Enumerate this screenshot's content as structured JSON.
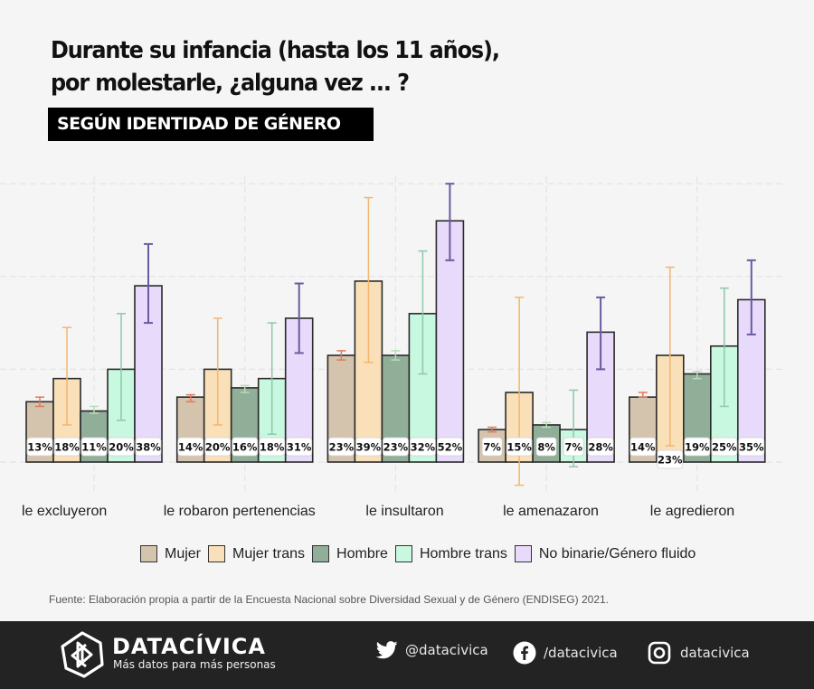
{
  "header": {
    "title_line1": "Durante su infancia (hasta los 11 años),",
    "title_line2": "por molestarle, ¿alguna vez ... ?",
    "subtitle": "SEGÚN IDENTIDAD DE GÉNERO"
  },
  "chart_data": {
    "type": "bar",
    "title": "Durante su infancia (hasta los 11 años), por molestarle, ¿alguna vez ... ?",
    "subtitle": "SEGÚN IDENTIDAD DE GÉNERO",
    "xlabel": "",
    "ylabel": "",
    "ylim": [
      0,
      60
    ],
    "y_gridlines": [
      0,
      20,
      40,
      60
    ],
    "grid": true,
    "legend_position": "bottom",
    "categories": [
      "le excluyeron",
      "le robaron pertenencias",
      "le insultaron",
      "le amenazaron",
      "le agredieron"
    ],
    "series": [
      {
        "name": "Mujer",
        "color": "#d4c3ad",
        "error_color": "#e07a5a",
        "values": [
          13,
          14,
          23,
          7,
          14
        ],
        "labels": [
          "13%",
          "14%",
          "23%",
          "7%",
          "14%"
        ],
        "error_low": [
          12,
          13,
          22,
          6.5,
          14
        ],
        "error_high": [
          14,
          14.5,
          24,
          7.5,
          15
        ]
      },
      {
        "name": "Mujer trans",
        "color": "#fae0b8",
        "error_color": "#f2b56e",
        "values": [
          18,
          20,
          39,
          15,
          23
        ],
        "labels": [
          "18%",
          "20%",
          "39%",
          "15%",
          "23%"
        ],
        "error_low": [
          8,
          8,
          21.5,
          -5,
          3.5
        ],
        "error_high": [
          29,
          31,
          57,
          35.5,
          42
        ]
      },
      {
        "name": "Hombre",
        "color": "#90ae98",
        "error_color": "#b9dab9",
        "values": [
          11,
          16,
          23,
          8,
          19
        ],
        "labels": [
          "11%",
          "16%",
          "23%",
          "8%",
          "19%"
        ],
        "error_low": [
          10.5,
          15,
          22,
          7.5,
          18
        ],
        "error_high": [
          12,
          16.5,
          24,
          8.5,
          19.5
        ]
      },
      {
        "name": "Hombre trans",
        "color": "#c8f8e0",
        "error_color": "#8cc8aa",
        "values": [
          20,
          18,
          32,
          7,
          25
        ],
        "labels": [
          "20%",
          "18%",
          "32%",
          "7%",
          "25%"
        ],
        "error_low": [
          9,
          6,
          19,
          -1,
          12
        ],
        "error_high": [
          32,
          30,
          45.5,
          15.5,
          37.5
        ]
      },
      {
        "name": "No binarie/Género fluido",
        "color": "#e8dafa",
        "error_color": "#6a5aa0",
        "values": [
          38,
          31,
          52,
          28,
          35
        ],
        "labels": [
          "38%",
          "31%",
          "52%",
          "28%",
          "35%"
        ],
        "error_low": [
          30,
          23.5,
          43.5,
          20,
          27.5
        ],
        "error_high": [
          47,
          38.5,
          60,
          35.5,
          43.5
        ]
      }
    ]
  },
  "legend": [
    {
      "label": "Mujer",
      "color": "#d4c3ad"
    },
    {
      "label": "Mujer trans",
      "color": "#fae0b8"
    },
    {
      "label": "Hombre",
      "color": "#90ae98"
    },
    {
      "label": "Hombre trans",
      "color": "#c8f8e0"
    },
    {
      "label": "No binarie/Género fluido",
      "color": "#e8dafa"
    }
  ],
  "source": "Fuente: Elaboración propia a partir de la Encuesta Nacional sobre Diversidad Sexual y de Género (ENDISEG) 2021.",
  "footer": {
    "logo_icon": "datacivica-logo-icon",
    "brand": "DATACÍVICA",
    "tagline": "Más datos para más personas",
    "social": [
      {
        "icon": "twitter-icon",
        "label": "@datacivica"
      },
      {
        "icon": "facebook-icon",
        "label": "/datacivica"
      },
      {
        "icon": "instagram-icon",
        "label": "datacivica"
      }
    ],
    "background": "#232323"
  }
}
